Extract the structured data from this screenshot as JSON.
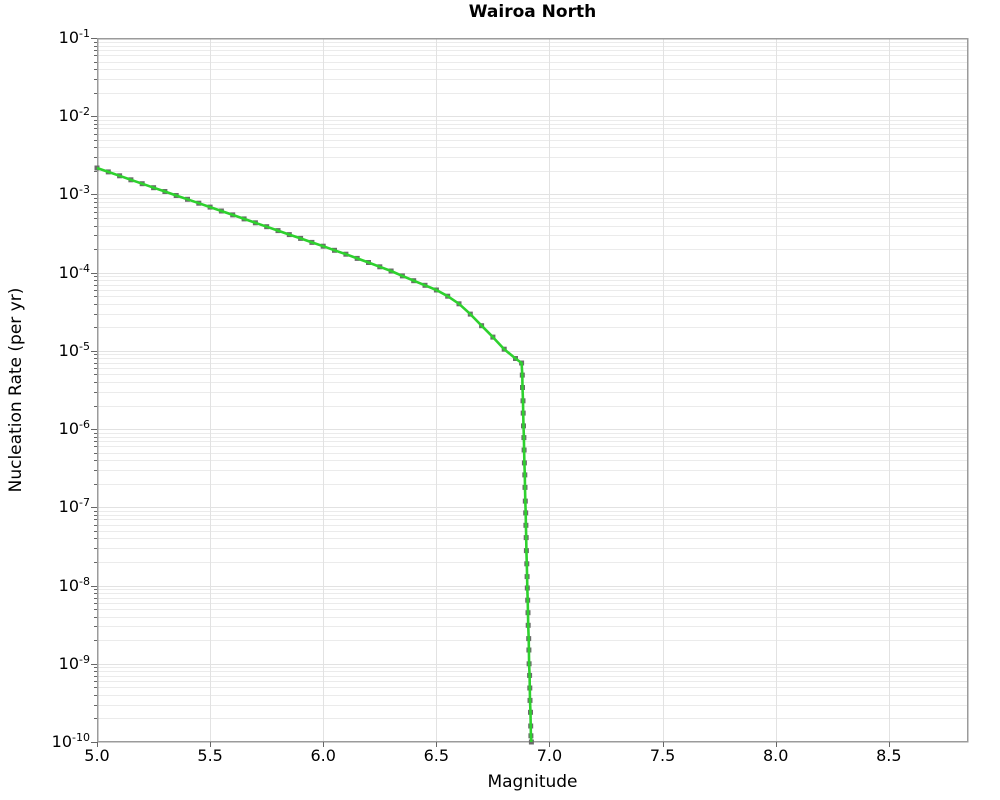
{
  "chart_data": {
    "type": "line",
    "title": "Wairoa North",
    "xlabel": "Magnitude",
    "ylabel": "Nucleation Rate (per yr)",
    "x_axis": {
      "scale": "linear",
      "min": 5.0,
      "max": 8.85,
      "tick_values": [
        5.0,
        5.5,
        6.0,
        6.5,
        7.0,
        7.5,
        8.0,
        8.5
      ],
      "tick_labels": [
        "5.0",
        "5.5",
        "6.0",
        "6.5",
        "7.0",
        "7.5",
        "8.0",
        "8.5"
      ]
    },
    "y_axis": {
      "scale": "log",
      "min_exponent": -10,
      "max_exponent": -1,
      "tick_exponents": [
        -1,
        -2,
        -3,
        -4,
        -5,
        -6,
        -7,
        -8,
        -9,
        -10
      ],
      "tick_base": "10"
    },
    "grid": {
      "vertical_major": true,
      "horizontal_major": true,
      "horizontal_log_minor": true,
      "major_color": "#e2e2e2",
      "minor_color": "#ebebeb"
    },
    "legend": "none",
    "series": [
      {
        "name": "nucleation-rate-curve",
        "line_color": "#2ed12e",
        "line_width": 2.6,
        "marker_shape": "square",
        "marker_color": "#6b6b6b",
        "marker_size": 5,
        "points": [
          [
            5.0,
            0.00218
          ],
          [
            5.05,
            0.00194
          ],
          [
            5.1,
            0.00173
          ],
          [
            5.15,
            0.00154
          ],
          [
            5.2,
            0.00137
          ],
          [
            5.25,
            0.00122
          ],
          [
            5.3,
            0.00109
          ],
          [
            5.35,
            0.00097
          ],
          [
            5.4,
            0.000867
          ],
          [
            5.45,
            0.000773
          ],
          [
            5.5,
            0.000689
          ],
          [
            5.55,
            0.000614
          ],
          [
            5.6,
            0.000547
          ],
          [
            5.65,
            0.000487
          ],
          [
            5.7,
            0.000434
          ],
          [
            5.75,
            0.000387
          ],
          [
            5.8,
            0.000345
          ],
          [
            5.85,
            0.000307
          ],
          [
            5.9,
            0.000274
          ],
          [
            5.95,
            0.000244
          ],
          [
            6.0,
            0.000218
          ],
          [
            6.05,
            0.000193
          ],
          [
            6.1,
            0.000172
          ],
          [
            6.15,
            0.000152
          ],
          [
            6.2,
            0.000135
          ],
          [
            6.25,
            0.000119
          ],
          [
            6.3,
            0.000105
          ],
          [
            6.35,
            9.1e-05
          ],
          [
            6.4,
            7.9e-05
          ],
          [
            6.45,
            6.9e-05
          ],
          [
            6.5,
            6e-05
          ],
          [
            6.55,
            5e-05
          ],
          [
            6.6,
            4e-05
          ],
          [
            6.65,
            2.95e-05
          ],
          [
            6.7,
            2.1e-05
          ],
          [
            6.75,
            1.5e-05
          ],
          [
            6.8,
            1.05e-05
          ],
          [
            6.85,
            8e-06
          ],
          [
            6.877,
            7e-06
          ],
          [
            6.88,
            4.9e-06
          ],
          [
            6.881,
            3.4e-06
          ],
          [
            6.883,
            2.3e-06
          ],
          [
            6.884,
            1.6e-06
          ],
          [
            6.885,
            1.1e-06
          ],
          [
            6.887,
            7.8e-07
          ],
          [
            6.888,
            5.4e-07
          ],
          [
            6.889,
            3.7e-07
          ],
          [
            6.891,
            2.6e-07
          ],
          [
            6.892,
            1.8e-07
          ],
          [
            6.893,
            1.2e-07
          ],
          [
            6.895,
            8.5e-08
          ],
          [
            6.896,
            5.9e-08
          ],
          [
            6.897,
            4.1e-08
          ],
          [
            6.898,
            2.8e-08
          ],
          [
            6.9,
            1.9e-08
          ],
          [
            6.901,
            1.3e-08
          ],
          [
            6.902,
            9.3e-09
          ],
          [
            6.904,
            6.5e-09
          ],
          [
            6.905,
            4.5e-09
          ],
          [
            6.906,
            3.1e-09
          ],
          [
            6.908,
            2.1e-09
          ],
          [
            6.909,
            1.5e-09
          ],
          [
            6.91,
            1e-09
          ],
          [
            6.912,
            7.1e-10
          ],
          [
            6.913,
            4.9e-10
          ],
          [
            6.914,
            3.4e-10
          ],
          [
            6.916,
            2.4e-10
          ],
          [
            6.917,
            1.6e-10
          ],
          [
            6.918,
            1.2e-10
          ],
          [
            6.92,
            1e-10
          ]
        ]
      }
    ],
    "style": {
      "spine_color": "#9b9b9b",
      "tick_color": "#666666",
      "background": "#ffffff",
      "text_color": "#000000"
    }
  }
}
